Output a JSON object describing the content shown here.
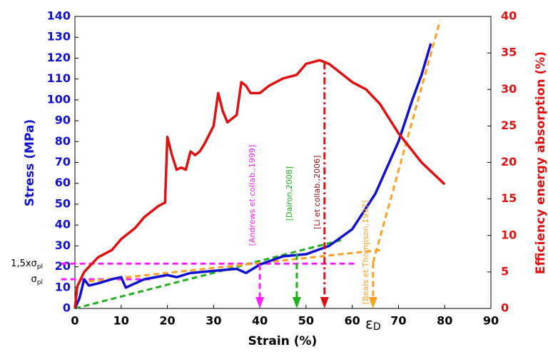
{
  "chart_data": {
    "type": "line",
    "xlabel": "Strain (%)",
    "ylabel": "Stress (MPa)",
    "y2label": "Efficiency energy absorption (%)",
    "xlim": [
      0,
      90
    ],
    "xticks": [
      0,
      10,
      20,
      30,
      40,
      50,
      60,
      70,
      80,
      90
    ],
    "ylim": [
      0,
      140
    ],
    "yticks": [
      0,
      10,
      20,
      30,
      40,
      50,
      60,
      70,
      80,
      90,
      100,
      110,
      120,
      130,
      140
    ],
    "y2lim": [
      0,
      40
    ],
    "y2ticks": [
      0,
      5,
      10,
      15,
      20,
      25,
      30,
      35,
      40
    ],
    "series": [
      {
        "name": "Stress",
        "color": "#1010d0",
        "x": [
          0,
          1,
          2,
          3,
          5,
          8,
          10,
          11,
          13,
          15,
          20,
          22,
          25,
          30,
          35,
          37,
          40,
          45,
          50,
          55,
          60,
          65,
          70,
          73,
          75,
          77
        ],
        "values": [
          0,
          5,
          14,
          11,
          12,
          14,
          15,
          10,
          12,
          14,
          16,
          15,
          17,
          18,
          19,
          17,
          21,
          25,
          26,
          30,
          38,
          55,
          80,
          100,
          112,
          127
        ]
      },
      {
        "name": "Efficiency",
        "color": "#e01010",
        "axis": "y2",
        "x": [
          0,
          0.5,
          2,
          5,
          8,
          10,
          13,
          15,
          18,
          19.5,
          20,
          21,
          22,
          23,
          24,
          25,
          26,
          27,
          28,
          30,
          31,
          32,
          33,
          35,
          36,
          37,
          38,
          40,
          42,
          45,
          48,
          50,
          53,
          55,
          58,
          60,
          63,
          66,
          70,
          75,
          80
        ],
        "values": [
          0,
          3,
          5,
          7,
          8,
          9.5,
          11,
          12.5,
          14,
          14.5,
          23.5,
          21,
          19,
          19.3,
          19,
          21.5,
          21,
          21.5,
          22.5,
          25,
          29.5,
          27,
          25.5,
          26.5,
          31,
          30.5,
          29.5,
          29.5,
          30.5,
          31.5,
          32,
          33.5,
          34,
          33.5,
          32,
          31,
          30,
          28,
          24,
          20,
          17
        ]
      }
    ],
    "lines": [
      {
        "color": "#ff20ff",
        "x": [
          -3,
          61
        ],
        "y": [
          21.5,
          21.5
        ]
      },
      {
        "color": "#ff20ff",
        "x": [
          -3,
          17
        ],
        "y": [
          14,
          14
        ]
      },
      {
        "color": "#20b020",
        "x": [
          0,
          58
        ],
        "y": [
          0,
          33
        ]
      },
      {
        "color": "#ffa020",
        "x": [
          3,
          66
        ],
        "y": [
          13,
          28
        ]
      },
      {
        "color": "#ffa020",
        "x": [
          64.5,
          79
        ],
        "y": [
          22,
          138
        ]
      }
    ],
    "arrows": [
      {
        "color": "#ff20ff",
        "x": 40,
        "y": [
          21,
          0
        ],
        "label": "[Andrews et collab.,1999]"
      },
      {
        "color": "#20b020",
        "x": 48,
        "y": [
          26,
          0
        ],
        "label": "[Dairon,2008]"
      },
      {
        "color": "#e01010",
        "x": 54,
        "y": [
          118,
          0
        ],
        "label": "[Li et collab.,2006]",
        "label_color": "#a01010"
      },
      {
        "color": "#ffa020",
        "x": 64.5,
        "y": [
          22,
          0
        ],
        "label": "[Beals et Thompson,1997]"
      }
    ],
    "left_labels": [
      {
        "text": "1,5xσ",
        "sub": "pl",
        "y": 21.5
      },
      {
        "text": "σ",
        "sub": "pl",
        "y": 14
      }
    ],
    "x_note": {
      "text": "ε",
      "sub": "D",
      "x": 64.5
    }
  }
}
